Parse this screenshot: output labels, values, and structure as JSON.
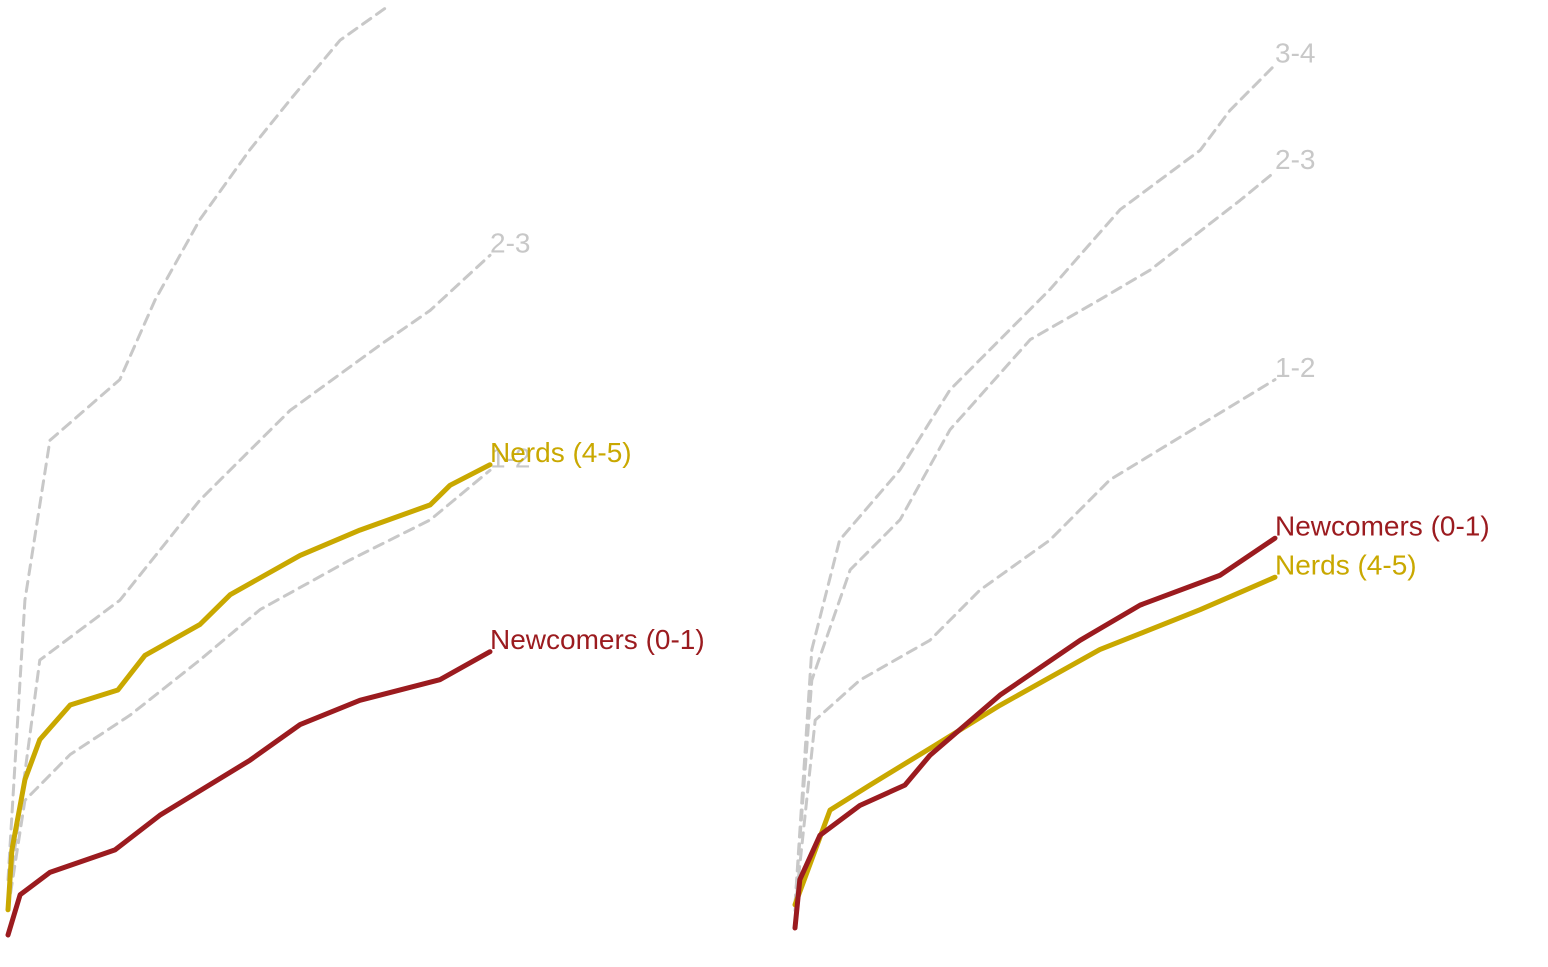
{
  "chart_data": [
    {
      "type": "line",
      "xlim": [
        0,
        100
      ],
      "ylim": [
        0,
        100
      ],
      "series": [
        {
          "name": null,
          "color": "#c8c8c8",
          "dashed": true,
          "x": [
            0,
            3.5,
            8.7,
            23.2,
            30.5,
            39.8,
            50.2,
            58.5,
            68.9,
            79.3
          ],
          "values": [
            5.9,
            35.8,
            52.9,
            59.4,
            67.9,
            76.5,
            84.0,
            89.3,
            95.7,
            99.5
          ]
        },
        {
          "name": "2-3",
          "color": "#c8c8c8",
          "dashed": true,
          "x": [
            0,
            6.6,
            23.2,
            39.8,
            58.5,
            77.2,
            87.6,
            100
          ],
          "values": [
            3.7,
            29.4,
            35.8,
            46.5,
            56.1,
            63.1,
            66.8,
            72.7
          ]
        },
        {
          "name": "1-2",
          "color": "#c8c8c8",
          "dashed": true,
          "x": [
            0,
            3.5,
            12.9,
            25.3,
            39.8,
            52.3,
            70.9,
            87.6,
            100
          ],
          "values": [
            2.7,
            14.4,
            19.3,
            23.5,
            29.4,
            34.8,
            40.1,
            44.4,
            49.7
          ]
        },
        {
          "name": "Nerds (4-5)",
          "color": "#c9a800",
          "dashed": false,
          "x": [
            0,
            0.8,
            3.5,
            6.6,
            12.9,
            22.8,
            28.4,
            39.8,
            46.1,
            60.6,
            73.0,
            87.6,
            91.7,
            100
          ],
          "values": [
            2.7,
            9.1,
            16.6,
            20.9,
            24.6,
            26.2,
            29.9,
            33.2,
            36.4,
            40.6,
            43.3,
            46.0,
            48.1,
            50.3
          ]
        },
        {
          "name": "Newcomers (0-1)",
          "color": "#9b1b1f",
          "dashed": false,
          "x": [
            0,
            2.5,
            8.7,
            22.2,
            31.5,
            50.2,
            60.6,
            73.0,
            89.6,
            100
          ],
          "values": [
            0,
            4.3,
            6.7,
            9.1,
            12.8,
            18.7,
            22.5,
            25.1,
            27.3,
            30.3
          ]
        }
      ]
    },
    {
      "type": "line",
      "xlim": [
        0,
        100
      ],
      "ylim": [
        0,
        100
      ],
      "series": [
        {
          "name": "3-4",
          "color": "#c8c8c8",
          "dashed": true,
          "x": [
            0,
            3.5,
            9.3,
            21.9,
            32.3,
            53.1,
            67.7,
            84.4,
            90.6,
            100
          ],
          "values": [
            2.5,
            30.0,
            41.8,
            49.4,
            58.0,
            68.8,
            77.4,
            83.8,
            88.1,
            93.0
          ]
        },
        {
          "name": "2-3",
          "color": "#c8c8c8",
          "dashed": true,
          "x": [
            0,
            3.5,
            11.5,
            21.9,
            32.3,
            49.0,
            63.5,
            74.0,
            92.7,
            100
          ],
          "values": [
            2.5,
            26.7,
            38.6,
            44.0,
            53.7,
            63.4,
            67.7,
            70.9,
            78.4,
            81.5
          ]
        },
        {
          "name": "1-2",
          "color": "#c8c8c8",
          "dashed": true,
          "x": [
            0,
            4.2,
            13.5,
            28.1,
            38.5,
            53.1,
            65.6,
            84.4,
            100
          ],
          "values": [
            1.9,
            22.4,
            26.7,
            31.0,
            36.4,
            41.8,
            48.3,
            54.2,
            59.1
          ]
        },
        {
          "name": "Nerds (4-5)",
          "color": "#c9a800",
          "dashed": false,
          "x": [
            0,
            7.3,
            15.6,
            29.2,
            42.7,
            63.5,
            84.4,
            93.8,
            100
          ],
          "values": [
            2.5,
            12.7,
            15.4,
            19.7,
            24.0,
            30.0,
            34.3,
            36.4,
            37.8
          ]
        },
        {
          "name": "Newcomers (0-1)",
          "color": "#9b1b1f",
          "dashed": false,
          "x": [
            0,
            1.0,
            5.2,
            13.5,
            22.9,
            28.1,
            42.7,
            59.4,
            71.9,
            88.5,
            100
          ],
          "values": [
            0,
            5.2,
            10.0,
            13.2,
            15.4,
            18.6,
            25.1,
            31.0,
            34.8,
            38.0,
            42.0
          ]
        }
      ]
    }
  ]
}
